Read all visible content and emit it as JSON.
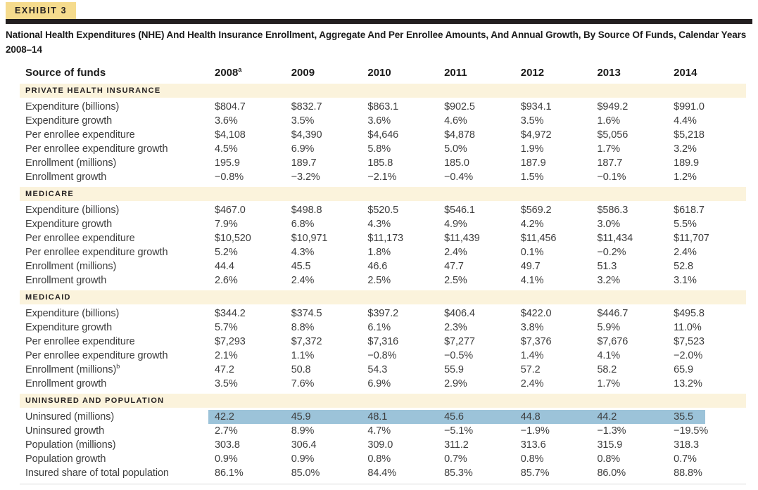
{
  "exhibit": {
    "label": "EXHIBIT 3"
  },
  "title": "National Health Expenditures (NHE) And Health Insurance Enrollment, Aggregate And Per Enrollee Amounts, And Annual Growth, By Source Of Funds, Calendar Years 2008–14",
  "colors": {
    "tab_yellow": "#F5DB8D",
    "rule_black": "#231F20",
    "section_cream": "#FBF3DC",
    "highlight_blue": "#9CC3D9"
  },
  "table": {
    "header": {
      "label": "Source of funds",
      "columns": [
        {
          "label": "2008",
          "sup": "a"
        },
        {
          "label": "2009"
        },
        {
          "label": "2010"
        },
        {
          "label": "2011"
        },
        {
          "label": "2012"
        },
        {
          "label": "2013"
        },
        {
          "label": "2014"
        }
      ]
    },
    "sections": [
      {
        "name": "PRIVATE HEALTH INSURANCE",
        "rows": [
          {
            "label": "Expenditure (billions)",
            "values": [
              "$804.7",
              "$832.7",
              "$863.1",
              "$902.5",
              "$934.1",
              "$949.2",
              "$991.0"
            ]
          },
          {
            "label": "Expenditure growth",
            "values": [
              "3.6%",
              "3.5%",
              "3.6%",
              "4.6%",
              "3.5%",
              "1.6%",
              "4.4%"
            ]
          },
          {
            "label": "Per enrollee expenditure",
            "values": [
              "$4,108",
              "$4,390",
              "$4,646",
              "$4,878",
              "$4,972",
              "$5,056",
              "$5,218"
            ]
          },
          {
            "label": "Per enrollee expenditure growth",
            "values": [
              "4.5%",
              "6.9%",
              "5.8%",
              "5.0%",
              "1.9%",
              "1.7%",
              "3.2%"
            ]
          },
          {
            "label": "Enrollment (millions)",
            "values": [
              "195.9",
              "189.7",
              "185.8",
              "185.0",
              "187.9",
              "187.7",
              "189.9"
            ]
          },
          {
            "label": "Enrollment growth",
            "values": [
              "−0.8%",
              "−3.2%",
              "−2.1%",
              "−0.4%",
              "1.5%",
              "−0.1%",
              "1.2%"
            ]
          }
        ]
      },
      {
        "name": "MEDICARE",
        "rows": [
          {
            "label": "Expenditure (billions)",
            "values": [
              "$467.0",
              "$498.8",
              "$520.5",
              "$546.1",
              "$569.2",
              "$586.3",
              "$618.7"
            ]
          },
          {
            "label": "Expenditure growth",
            "values": [
              "7.9%",
              "6.8%",
              "4.3%",
              "4.9%",
              "4.2%",
              "3.0%",
              "5.5%"
            ]
          },
          {
            "label": "Per enrollee expenditure",
            "values": [
              "$10,520",
              "$10,971",
              "$11,173",
              "$11,439",
              "$11,456",
              "$11,434",
              "$11,707"
            ]
          },
          {
            "label": "Per enrollee expenditure growth",
            "values": [
              "5.2%",
              "4.3%",
              "1.8%",
              "2.4%",
              "0.1%",
              "−0.2%",
              "2.4%"
            ]
          },
          {
            "label": "Enrollment (millions)",
            "values": [
              "44.4",
              "45.5",
              "46.6",
              "47.7",
              "49.7",
              "51.3",
              "52.8"
            ]
          },
          {
            "label": "Enrollment growth",
            "values": [
              "2.6%",
              "2.4%",
              "2.5%",
              "2.5%",
              "4.1%",
              "3.2%",
              "3.1%"
            ]
          }
        ]
      },
      {
        "name": "MEDICAID",
        "rows": [
          {
            "label": "Expenditure (billions)",
            "values": [
              "$344.2",
              "$374.5",
              "$397.2",
              "$406.4",
              "$422.0",
              "$446.7",
              "$495.8"
            ]
          },
          {
            "label": "Expenditure growth",
            "values": [
              "5.7%",
              "8.8%",
              "6.1%",
              "2.3%",
              "3.8%",
              "5.9%",
              "11.0%"
            ]
          },
          {
            "label": "Per enrollee expenditure",
            "values": [
              "$7,293",
              "$7,372",
              "$7,316",
              "$7,277",
              "$7,376",
              "$7,676",
              "$7,523"
            ]
          },
          {
            "label": "Per enrollee expenditure growth",
            "values": [
              "2.1%",
              "1.1%",
              "−0.8%",
              "−0.5%",
              "1.4%",
              "4.1%",
              "−2.0%"
            ]
          },
          {
            "label": "Enrollment (millions)",
            "sup": "b",
            "values": [
              "47.2",
              "50.8",
              "54.3",
              "55.9",
              "57.2",
              "58.2",
              "65.9"
            ]
          },
          {
            "label": "Enrollment growth",
            "values": [
              "3.5%",
              "7.6%",
              "6.9%",
              "2.9%",
              "2.4%",
              "1.7%",
              "13.2%"
            ]
          }
        ]
      },
      {
        "name": "UNINSURED AND POPULATION",
        "rows": [
          {
            "label": "Uninsured (millions)",
            "highlight": true,
            "values": [
              "42.2",
              "45.9",
              "48.1",
              "45.6",
              "44.8",
              "44.2",
              "35.5"
            ]
          },
          {
            "label": "Uninsured growth",
            "values": [
              "2.7%",
              "8.9%",
              "4.7%",
              "−5.1%",
              "−1.9%",
              "−1.3%",
              "−19.5%"
            ]
          },
          {
            "label": "Population (millions)",
            "values": [
              "303.8",
              "306.4",
              "309.0",
              "311.2",
              "313.6",
              "315.9",
              "318.3"
            ]
          },
          {
            "label": "Population growth",
            "values": [
              "0.9%",
              "0.9%",
              "0.8%",
              "0.7%",
              "0.8%",
              "0.8%",
              "0.7%"
            ]
          },
          {
            "label": "Insured share of total population",
            "values": [
              "86.1%",
              "85.0%",
              "84.4%",
              "85.3%",
              "85.7%",
              "86.0%",
              "88.8%"
            ]
          }
        ]
      }
    ]
  }
}
